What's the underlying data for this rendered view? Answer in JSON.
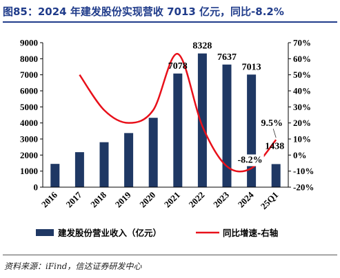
{
  "title": "图85：2024 年建发股份实现营收 7013 亿元，同比-8.2%",
  "source": "资料来源：iFind，信达证券研发中心",
  "colors": {
    "bar": "#1f3864",
    "line": "#e8101a",
    "title": "#1f3b8a"
  },
  "chart_data": {
    "type": "bar",
    "categories": [
      "2016",
      "2017",
      "2018",
      "2019",
      "2020",
      "2021",
      "2022",
      "2023",
      "2024",
      "25Q1"
    ],
    "series": [
      {
        "name": "建发股份营业收入（亿元）",
        "type": "bar",
        "axis": "left",
        "values": [
          1450,
          2180,
          2800,
          3370,
          4320,
          7078,
          8328,
          7637,
          7013,
          1438
        ]
      },
      {
        "name": "同比增速-右轴",
        "type": "line",
        "axis": "right",
        "values": [
          null,
          50,
          28,
          20,
          28,
          63,
          18,
          -7,
          -8.2,
          9.5
        ]
      }
    ],
    "data_labels": [
      {
        "category": "2021",
        "text": "7078"
      },
      {
        "category": "2022",
        "text": "8328"
      },
      {
        "category": "2023",
        "text": "7637"
      },
      {
        "category": "2024",
        "text": "7013"
      },
      {
        "category": "25Q1",
        "text": "1438"
      },
      {
        "category": "2024",
        "text": "-8.2%"
      },
      {
        "category": "25Q1",
        "text": "9.5%"
      }
    ],
    "yleft": {
      "min": 0,
      "max": 9000,
      "step": 1000
    },
    "yright": {
      "min": -20,
      "max": 70,
      "step": 10,
      "suffix": "%"
    },
    "legend_position": "bottom",
    "grid": false
  }
}
